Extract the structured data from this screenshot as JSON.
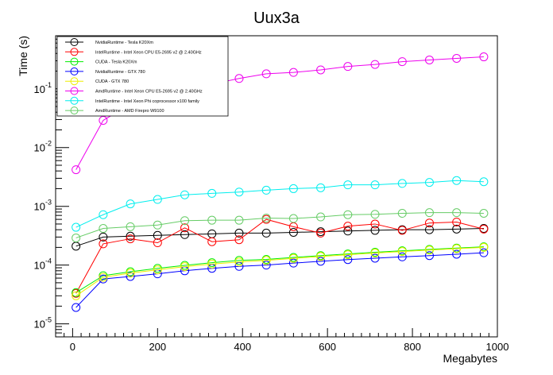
{
  "chart_data": {
    "type": "line",
    "title": "Uux3a",
    "xlabel": "Megabytes",
    "ylabel": "Time (s)",
    "xlim": [
      -40,
      1000
    ],
    "ylim": [
      6e-06,
      0.8
    ],
    "yscale": "log",
    "grid": false,
    "legend_position": "top-left",
    "x_ticks": [
      0,
      200,
      400,
      600,
      800,
      1000
    ],
    "y_ticks": [
      {
        "value": 1e-05,
        "base": "10",
        "exp": "-5"
      },
      {
        "value": 0.0001,
        "base": "10",
        "exp": "-4"
      },
      {
        "value": 0.001,
        "base": "10",
        "exp": "-3"
      },
      {
        "value": 0.01,
        "base": "10",
        "exp": "-2"
      },
      {
        "value": 0.1,
        "base": "10",
        "exp": "-1"
      }
    ],
    "x": [
      8,
      72,
      136,
      200,
      264,
      328,
      392,
      456,
      520,
      584,
      648,
      712,
      776,
      840,
      904,
      968
    ],
    "series": [
      {
        "name": "NvidiaRuntime - Tesla K20Xm",
        "color": "#000000",
        "values": [
          0.00021,
          0.0003,
          0.00031,
          0.00032,
          0.00033,
          0.00034,
          0.00035,
          0.00035,
          0.00036,
          0.00037,
          0.00038,
          0.00039,
          0.0004,
          0.0004,
          0.00041,
          0.00042
        ]
      },
      {
        "name": "IntelRuntime - Intel Xeon CPU E5-2695 v2 @ 2.40GHz",
        "color": "#ff0000",
        "values": [
          3.3e-05,
          0.00023,
          0.00028,
          0.00024,
          0.00043,
          0.00025,
          0.00027,
          0.0006,
          0.00045,
          0.00035,
          0.00046,
          0.0005,
          0.00039,
          0.00052,
          0.00054,
          0.00041
        ]
      },
      {
        "name": "CUDA - Tesla K20Xm",
        "color": "#00ee00",
        "values": [
          3.4e-05,
          6.6e-05,
          7.7e-05,
          8.8e-05,
          9.9e-05,
          0.00011,
          0.00012,
          0.000125,
          0.000135,
          0.000145,
          0.000155,
          0.000165,
          0.000175,
          0.000185,
          0.000195,
          0.000205
        ]
      },
      {
        "name": "NvidiaRuntime - GTX 780",
        "color": "#0000ff",
        "values": [
          1.9e-05,
          5.8e-05,
          6.4e-05,
          7.1e-05,
          8e-05,
          8.8e-05,
          9.5e-05,
          0.0001,
          0.000108,
          0.000116,
          0.000124,
          0.000131,
          0.000138,
          0.000145,
          0.000153,
          0.000162
        ]
      },
      {
        "name": "CUDA - GTX 780",
        "color": "#eeee00",
        "values": [
          3e-05,
          6.2e-05,
          7.3e-05,
          8.3e-05,
          9.4e-05,
          0.000104,
          0.000113,
          0.00012,
          0.00013,
          0.00014,
          0.00015,
          0.00016,
          0.00017,
          0.00018,
          0.00019,
          0.0002
        ]
      },
      {
        "name": "AmdRuntime - Intel Xeon CPU E5-2695 v2 @ 2.40GHz",
        "color": "#ee00ee",
        "values": [
          0.0042,
          0.029,
          0.055,
          0.08,
          0.1,
          0.12,
          0.15,
          0.18,
          0.19,
          0.21,
          0.24,
          0.26,
          0.29,
          0.31,
          0.33,
          0.35
        ]
      },
      {
        "name": "IntelRuntime - Intel Xeon Phi coprocessor x100 family",
        "color": "#00eeee",
        "values": [
          0.00044,
          0.00072,
          0.0011,
          0.00131,
          0.00157,
          0.00166,
          0.00175,
          0.00188,
          0.002,
          0.00207,
          0.00232,
          0.00232,
          0.00245,
          0.00255,
          0.00275,
          0.00262
        ]
      },
      {
        "name": "AmdRuntime - AMD Firepro W9100",
        "color": "#66cc66",
        "values": [
          0.00029,
          0.00042,
          0.00045,
          0.00048,
          0.00057,
          0.00058,
          0.00058,
          0.00063,
          0.00062,
          0.00066,
          0.00072,
          0.00073,
          0.00076,
          0.00078,
          0.00078,
          0.00076
        ]
      }
    ]
  }
}
